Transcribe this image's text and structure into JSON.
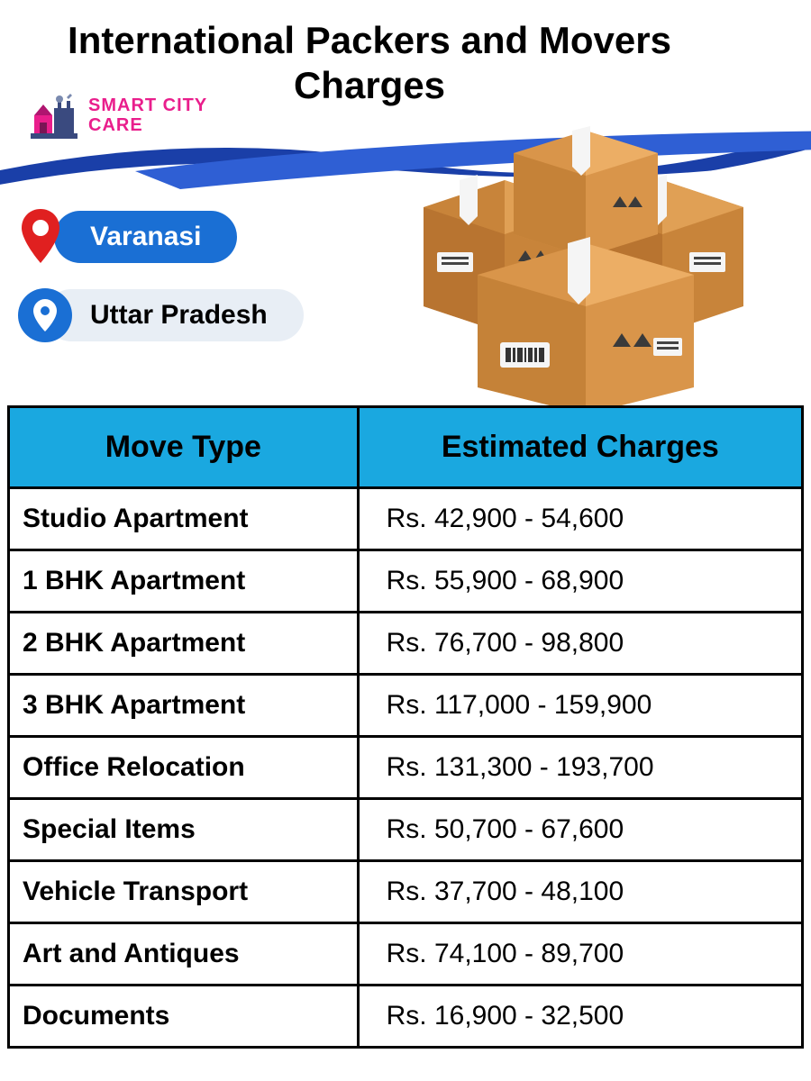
{
  "title": "International Packers and Movers Charges",
  "logo": {
    "brand_line1": "SMART CITY",
    "brand_line2": "CARE",
    "brand_color": "#e91e8c"
  },
  "location": {
    "city": "Varanasi",
    "state": "Uttar Pradesh",
    "city_pill_bg": "#1a6fd4",
    "state_pill_bg": "#e8eef5"
  },
  "swoosh_colors": {
    "primary": "#1a3fa8",
    "secondary": "#2f5fd4"
  },
  "box_color": "#d9954a",
  "table": {
    "header_bg": "#1aa8e0",
    "columns": [
      "Move Type",
      "Estimated Charges"
    ],
    "rows": [
      {
        "type": "Studio Apartment",
        "charge": "Rs. 42,900 - 54,600"
      },
      {
        "type": "1 BHK Apartment",
        "charge": "Rs. 55,900 - 68,900"
      },
      {
        "type": "2 BHK Apartment",
        "charge": "Rs. 76,700 - 98,800"
      },
      {
        "type": "3 BHK Apartment",
        "charge": "Rs. 117,000 - 159,900"
      },
      {
        "type": "Office Relocation",
        "charge": "Rs. 131,300 - 193,700"
      },
      {
        "type": "Special Items",
        "charge": "Rs. 50,700 - 67,600"
      },
      {
        "type": "Vehicle Transport",
        "charge": "Rs. 37,700 - 48,100"
      },
      {
        "type": "Art and Antiques",
        "charge": "Rs. 74,100 - 89,700"
      },
      {
        "type": "Documents",
        "charge": "Rs. 16,900 - 32,500"
      }
    ]
  }
}
